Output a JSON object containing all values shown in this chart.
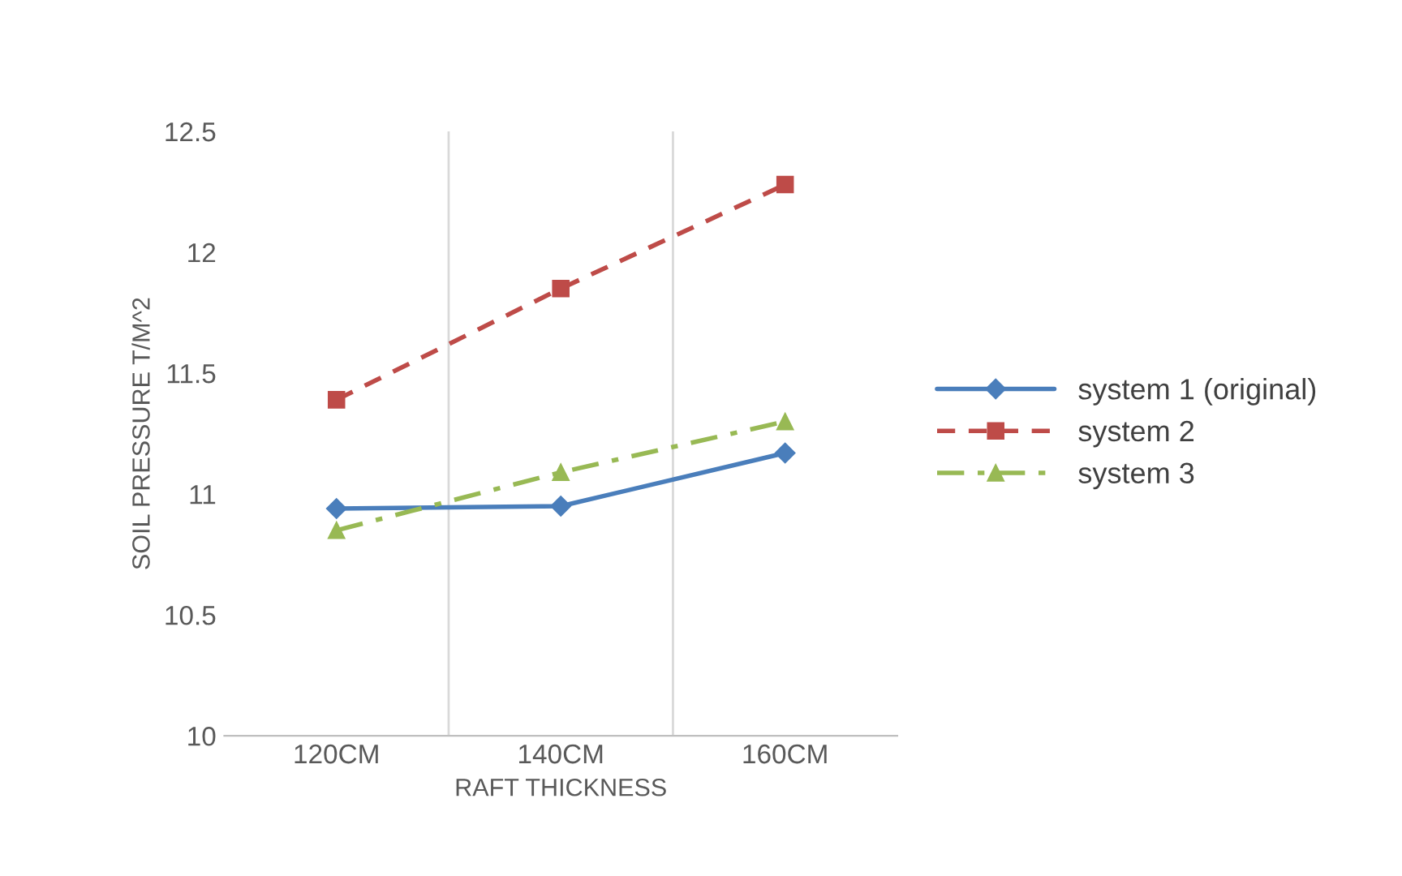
{
  "chart_data": {
    "type": "line",
    "xlabel": "RAFT THICKNESS",
    "ylabel": "SOIL PRESSURE T/M^2",
    "categories": [
      "120CM",
      "140CM",
      "160CM"
    ],
    "series": [
      {
        "name": "system 1 (original)",
        "color": "#4a7ebb",
        "values": [
          10.94,
          10.95,
          11.17
        ],
        "marker": "diamond",
        "line_style": "solid"
      },
      {
        "name": "system 2",
        "color": "#be4b48",
        "values": [
          11.39,
          11.85,
          12.28
        ],
        "marker": "square",
        "line_style": "dashed"
      },
      {
        "name": "system 3",
        "color": "#98b954",
        "values": [
          10.85,
          11.09,
          11.3
        ],
        "marker": "triangle",
        "line_style": "dashdot"
      }
    ],
    "ylim": [
      10,
      12.5
    ],
    "yticks": [
      10,
      10.5,
      11,
      11.5,
      12,
      12.5
    ],
    "grid": "x",
    "legend": "right"
  }
}
